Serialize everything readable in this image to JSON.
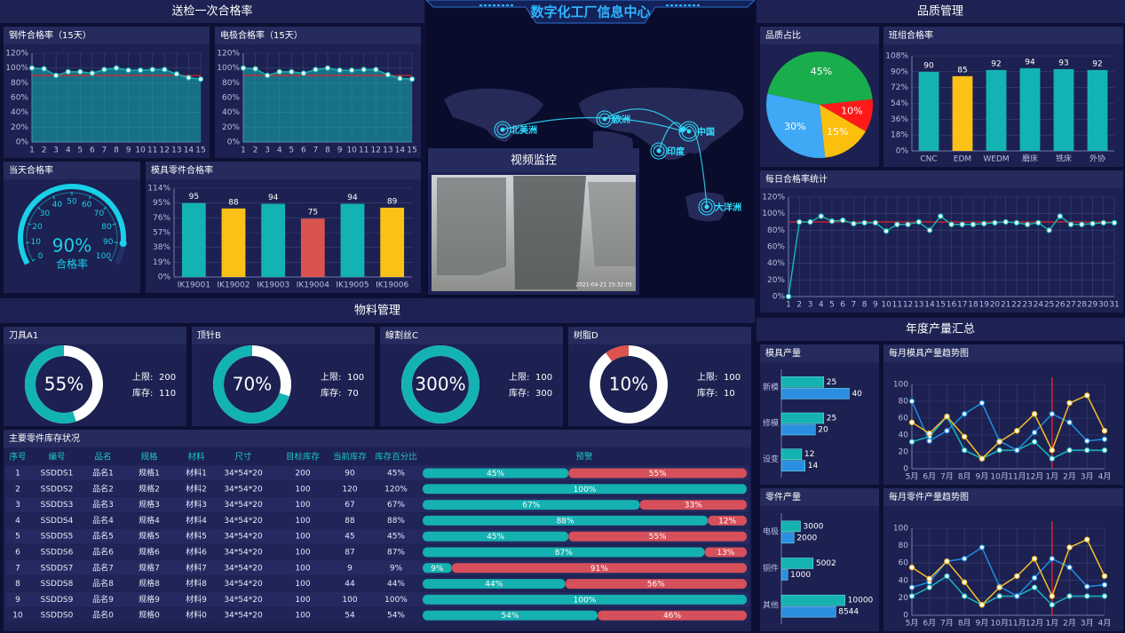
{
  "header": {
    "title": "数字化工厂信息中心"
  },
  "sections": {
    "inspection": "送检一次合格率",
    "quality": "品质管理",
    "material": "物料管理",
    "production": "年度产量汇总"
  },
  "map": {
    "labels": [
      "北美洲",
      "欧洲",
      "中国",
      "印度",
      "大洋洲"
    ]
  },
  "video": {
    "title": "视频监控",
    "timestamp": "2021-04-21 15:32:05"
  },
  "chart_data": [
    {
      "type": "line",
      "title": "钢件合格率（15天）",
      "categories": [
        "1",
        "2",
        "3",
        "4",
        "5",
        "6",
        "7",
        "8",
        "9",
        "10",
        "11",
        "12",
        "13",
        "14",
        "15"
      ],
      "series": [
        {
          "color": "#16b3b3",
          "values": [
            100,
            99,
            90,
            95,
            95,
            93,
            98,
            100,
            97,
            97,
            98,
            98,
            92,
            87,
            85
          ]
        }
      ],
      "ylim": [
        0,
        120
      ],
      "yticks": [
        {
          "value": 0,
          "label": "0%"
        },
        {
          "value": 20,
          "label": "20%"
        },
        {
          "value": 40,
          "label": "40%"
        },
        {
          "value": 60,
          "label": "60%"
        },
        {
          "value": 80,
          "label": "80%"
        },
        {
          "value": 100,
          "label": "100%"
        },
        {
          "value": 120,
          "label": "120%"
        }
      ],
      "threshold": 90,
      "area": true,
      "vgrid": true,
      "grid": true
    },
    {
      "type": "line",
      "title": "电极合格率（15天）",
      "categories": [
        "1",
        "2",
        "3",
        "4",
        "5",
        "6",
        "7",
        "8",
        "9",
        "10",
        "11",
        "12",
        "13",
        "14",
        "15"
      ],
      "series": [
        {
          "color": "#16b3b3",
          "values": [
            100,
            99,
            90,
            95,
            95,
            93,
            98,
            100,
            97,
            97,
            98,
            98,
            91,
            86,
            85
          ]
        }
      ],
      "ylim": [
        0,
        120
      ],
      "yticks": [
        {
          "value": 0,
          "label": "0%"
        },
        {
          "value": 20,
          "label": "20%"
        },
        {
          "value": 40,
          "label": "40%"
        },
        {
          "value": 60,
          "label": "60%"
        },
        {
          "value": 80,
          "label": "80%"
        },
        {
          "value": 100,
          "label": "100%"
        },
        {
          "value": 120,
          "label": "120%"
        }
      ],
      "threshold": 90,
      "area": true,
      "vgrid": true,
      "grid": true
    },
    {
      "type": "gauge",
      "title": "当天合格率",
      "value": 90,
      "value_label": "90%",
      "caption": "合格率",
      "range": [
        0,
        100
      ],
      "ticks": [
        0,
        10,
        20,
        30,
        40,
        50,
        60,
        70,
        80,
        90,
        100
      ],
      "color": "#19d0e8"
    },
    {
      "type": "bar",
      "title": "模具零件合格率",
      "categories": [
        "IK19001",
        "IK19002",
        "IK19003",
        "IK19004",
        "IK19005",
        "IK19006"
      ],
      "values": [
        95,
        88,
        94,
        75,
        94,
        89
      ],
      "colors": [
        "#14b3b3",
        "#fcc117",
        "#14b3b3",
        "#d9534f",
        "#14b3b3",
        "#fcc117"
      ],
      "ylim": [
        0,
        114
      ],
      "yticks": [
        {
          "value": 0,
          "label": "0%"
        },
        {
          "value": 19,
          "label": "19%"
        },
        {
          "value": 38,
          "label": "38%"
        },
        {
          "value": 57,
          "label": "57%"
        },
        {
          "value": 76,
          "label": "76%"
        },
        {
          "value": 95,
          "label": "95%"
        },
        {
          "value": 114,
          "label": "114%"
        }
      ],
      "grid": true,
      "data_labels": true
    },
    {
      "type": "pie",
      "title": "品质占比",
      "values": [
        45,
        10,
        15,
        30
      ],
      "value_labels": [
        "45%",
        "10%",
        "15%",
        "30%"
      ],
      "colors": [
        "#1aad4b",
        "#ff1a1a",
        "#fbbf0e",
        "#3fa9f5"
      ]
    },
    {
      "type": "bar",
      "title": "班组合格率",
      "categories": [
        "CNC",
        "EDM",
        "WEDM",
        "磨床",
        "铣床",
        "外协"
      ],
      "values": [
        90,
        85,
        92,
        94,
        93,
        92
      ],
      "colors": [
        "#14b3b3",
        "#fcc117",
        "#14b3b3",
        "#14b3b3",
        "#14b3b3",
        "#14b3b3"
      ],
      "ylim": [
        0,
        108
      ],
      "yticks": [
        {
          "value": 0,
          "label": "0%"
        },
        {
          "value": 18,
          "label": "18%"
        },
        {
          "value": 36,
          "label": "36%"
        },
        {
          "value": 54,
          "label": "54%"
        },
        {
          "value": 72,
          "label": "72%"
        },
        {
          "value": 90,
          "label": "90%"
        },
        {
          "value": 108,
          "label": "108%"
        }
      ],
      "grid": true,
      "data_labels": true
    },
    {
      "type": "line",
      "title": "每日合格率统计",
      "categories": [
        "1",
        "2",
        "3",
        "4",
        "5",
        "6",
        "7",
        "8",
        "9",
        "10",
        "11",
        "12",
        "13",
        "14",
        "15",
        "16",
        "17",
        "18",
        "19",
        "20",
        "21",
        "22",
        "23",
        "24",
        "25",
        "26",
        "27",
        "28",
        "29",
        "30",
        "31"
      ],
      "series": [
        {
          "color": "#16b3b3",
          "values": [
            0,
            90,
            90,
            97,
            91,
            92,
            88,
            89,
            89,
            79,
            87,
            87,
            90,
            80,
            97,
            87,
            87,
            87,
            88,
            89,
            90,
            89,
            87,
            89,
            80,
            97,
            87,
            87,
            88,
            89,
            89
          ]
        }
      ],
      "ylim": [
        0,
        120
      ],
      "yticks": [
        {
          "value": 0,
          "label": "0%"
        },
        {
          "value": 20,
          "label": "20%"
        },
        {
          "value": 40,
          "label": "40%"
        },
        {
          "value": 60,
          "label": "60%"
        },
        {
          "value": 80,
          "label": "80%"
        },
        {
          "value": 100,
          "label": "100%"
        },
        {
          "value": 120,
          "label": "120%"
        }
      ],
      "threshold": 90,
      "area": false,
      "vgrid": true,
      "grid": true
    },
    {
      "type": "donut",
      "title": "刀具A1",
      "value": 55,
      "value_label": "55%",
      "color": "#14b3b3",
      "notes": [
        {
          "label": "上限:",
          "value": 200
        },
        {
          "label": "库存:",
          "value": 110
        }
      ]
    },
    {
      "type": "donut",
      "title": "顶针B",
      "value": 70,
      "value_label": "70%",
      "color": "#14b3b3",
      "notes": [
        {
          "label": "上限:",
          "value": 100
        },
        {
          "label": "库存:",
          "value": 70
        }
      ]
    },
    {
      "type": "donut",
      "title": "線割丝C",
      "value": 300,
      "value_label": "300%",
      "color": "#14b3b3",
      "notes": [
        {
          "label": "上限:",
          "value": 100
        },
        {
          "label": "库存:",
          "value": 300
        }
      ]
    },
    {
      "type": "donut",
      "title": "树脂D",
      "value": 10,
      "value_label": "10%",
      "color": "#d9534f",
      "notes": [
        {
          "label": "上限:",
          "value": 100
        },
        {
          "label": "库存:",
          "value": 10
        }
      ]
    },
    {
      "type": "hbar",
      "title": "模具产量",
      "categories": [
        "新模",
        "修模",
        "设变"
      ],
      "series": [
        {
          "color": "#14b3b0",
          "values": [
            25,
            25,
            12
          ]
        },
        {
          "color": "#2a8fe0",
          "values": [
            40,
            20,
            14
          ]
        }
      ],
      "xlim": [
        0,
        45
      ],
      "data_labels": true
    },
    {
      "type": "line",
      "title": "每月模具产量趋势图",
      "categories": [
        "5月",
        "6月",
        "7月",
        "8月",
        "9月",
        "10月",
        "11月",
        "12月",
        "1月",
        "2月",
        "3月",
        "4月"
      ],
      "series": [
        {
          "color": "#17b8be",
          "values": [
            32,
            38,
            62,
            22,
            12,
            22,
            22,
            32,
            12,
            22,
            22,
            22
          ]
        },
        {
          "color": "#1f8ee0",
          "values": [
            80,
            33,
            45,
            65,
            78,
            33,
            22,
            43,
            65,
            55,
            33,
            35
          ]
        },
        {
          "color": "#f7be2a",
          "values": [
            55,
            42,
            62,
            38,
            12,
            32,
            45,
            65,
            22,
            78,
            87,
            45
          ]
        }
      ],
      "ylim": [
        0,
        100
      ],
      "yticks": [
        0,
        20,
        40,
        60,
        80,
        100
      ],
      "vline_index": 8,
      "area": false,
      "vgrid": true,
      "grid": true
    },
    {
      "type": "hbar",
      "title": "零件产量",
      "categories": [
        "电极",
        "铜件",
        "其他"
      ],
      "series": [
        {
          "color": "#14b3b0",
          "values": [
            3000,
            5002,
            10000
          ]
        },
        {
          "color": "#2a8fe0",
          "values": [
            2000,
            1000,
            8544
          ]
        }
      ],
      "xlim": [
        0,
        12000
      ],
      "data_labels": true
    },
    {
      "type": "line",
      "title": "每月零件产量趋势图",
      "categories": [
        "5月",
        "6月",
        "7月",
        "8月",
        "9月",
        "10月",
        "11月",
        "12月",
        "1月",
        "2月",
        "3月",
        "4月"
      ],
      "series": [
        {
          "color": "#17b8be",
          "values": [
            22,
            32,
            45,
            22,
            12,
            22,
            22,
            32,
            12,
            22,
            22,
            22
          ]
        },
        {
          "color": "#1f8ee0",
          "values": [
            32,
            38,
            62,
            65,
            78,
            33,
            22,
            43,
            65,
            55,
            33,
            35
          ]
        },
        {
          "color": "#f7be2a",
          "values": [
            55,
            42,
            62,
            38,
            12,
            32,
            45,
            65,
            22,
            78,
            87,
            45
          ]
        }
      ],
      "ylim": [
        0,
        100
      ],
      "yticks": [
        0,
        20,
        40,
        60,
        80,
        100
      ],
      "vline_index": 8,
      "area": false,
      "vgrid": true,
      "grid": true
    }
  ],
  "table": {
    "title": "主要零件库存状况",
    "columns": [
      "序号",
      "编号",
      "品名",
      "规格",
      "材料",
      "尺寸",
      "目标库存",
      "当前库存",
      "库存百分比",
      "预警"
    ],
    "rows": [
      [
        "1",
        "SSDDS1",
        "品名1",
        "规格1",
        "材料1",
        "34*54*20",
        "200",
        "90",
        "45%"
      ],
      [
        "2",
        "SSDDS2",
        "品名2",
        "规格2",
        "材料2",
        "34*54*20",
        "100",
        "120",
        "120%"
      ],
      [
        "3",
        "SSDDS3",
        "品名3",
        "规格3",
        "材料3",
        "34*54*20",
        "100",
        "67",
        "67%"
      ],
      [
        "4",
        "SSDDS4",
        "品名4",
        "规格4",
        "材料4",
        "34*54*20",
        "100",
        "88",
        "88%"
      ],
      [
        "5",
        "SSDDS5",
        "品名5",
        "规格5",
        "材料5",
        "34*54*20",
        "100",
        "45",
        "45%"
      ],
      [
        "6",
        "SSDDS6",
        "品名6",
        "规格6",
        "材料6",
        "34*54*20",
        "100",
        "87",
        "87%"
      ],
      [
        "7",
        "SSDDS7",
        "品名7",
        "规格7",
        "材料7",
        "34*54*20",
        "100",
        "9",
        "9%"
      ],
      [
        "8",
        "SSDDS8",
        "品名8",
        "规格8",
        "材料8",
        "34*54*20",
        "100",
        "44",
        "44%"
      ],
      [
        "9",
        "SSDDS9",
        "品名9",
        "规格9",
        "材料9",
        "34*54*20",
        "100",
        "100",
        "100%"
      ],
      [
        "10",
        "SSDDS0",
        "品名0",
        "规格0",
        "材料0",
        "34*54*20",
        "100",
        "54",
        "54%"
      ]
    ],
    "warning": [
      [
        {
          "value": 45,
          "label": "45%"
        },
        {
          "value": 55,
          "label": "55%"
        }
      ],
      [
        {
          "value": 100,
          "label": "100%"
        }
      ],
      [
        {
          "value": 67,
          "label": "67%"
        },
        {
          "value": 33,
          "label": "33%"
        }
      ],
      [
        {
          "value": 88,
          "label": "88%"
        },
        {
          "value": 12,
          "label": "12%"
        }
      ],
      [
        {
          "value": 45,
          "label": "45%"
        },
        {
          "value": 55,
          "label": "55%"
        }
      ],
      [
        {
          "value": 87,
          "label": "87%"
        },
        {
          "value": 13,
          "label": "13%"
        }
      ],
      [
        {
          "value": 9,
          "label": "9%"
        },
        {
          "value": 91,
          "label": "91%"
        }
      ],
      [
        {
          "value": 44,
          "label": "44%"
        },
        {
          "value": 56,
          "label": "56%"
        }
      ],
      [
        {
          "value": 100,
          "label": "100%"
        }
      ],
      [
        {
          "value": 54,
          "label": "54%"
        },
        {
          "value": 46,
          "label": "46%"
        }
      ]
    ],
    "warning_colors": [
      "#15b0b0",
      "#d5505a"
    ]
  }
}
